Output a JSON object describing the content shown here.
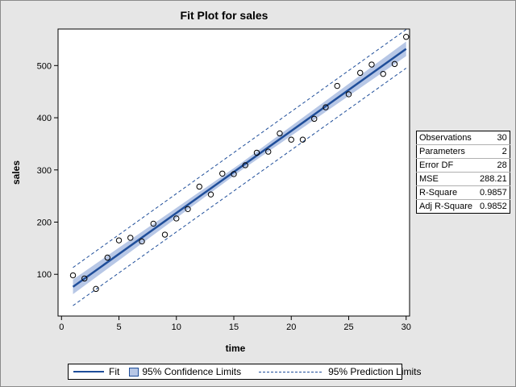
{
  "chart_data": {
    "type": "scatter",
    "title": "Fit Plot for sales",
    "xlabel": "time",
    "ylabel": "sales",
    "xlim": [
      -0.3,
      30.3
    ],
    "ylim": [
      20,
      570
    ],
    "x_ticks": [
      0,
      5,
      10,
      15,
      20,
      25,
      30
    ],
    "y_ticks": [
      100,
      200,
      300,
      400,
      500
    ],
    "grid": false,
    "series": [
      {
        "name": "Observations",
        "kind": "scatter",
        "x": [
          1,
          2,
          3,
          4,
          5,
          6,
          7,
          8,
          9,
          10,
          11,
          12,
          13,
          14,
          15,
          16,
          17,
          18,
          19,
          20,
          21,
          22,
          23,
          24,
          25,
          26,
          27,
          28,
          29,
          30
        ],
        "y": [
          98,
          92,
          72,
          132,
          165,
          170,
          163,
          197,
          176,
          207,
          225,
          268,
          253,
          293,
          292,
          309,
          333,
          335,
          370,
          358,
          358,
          398,
          420,
          461,
          445,
          486,
          502,
          484,
          503,
          555
        ]
      },
      {
        "name": "Fit",
        "kind": "line",
        "x": [
          1,
          30
        ],
        "y": [
          76,
          532
        ]
      },
      {
        "name": "95% Confidence Limits",
        "kind": "band",
        "x": [
          1,
          15.5,
          30
        ],
        "lower": [
          62,
          297,
          518
        ],
        "upper": [
          90,
          311,
          546
        ]
      },
      {
        "name": "95% Prediction Limits",
        "kind": "dashed-bounds",
        "x": [
          1,
          30
        ],
        "lower": [
          40,
          495
        ],
        "upper": [
          113,
          569
        ]
      }
    ]
  },
  "stats": [
    {
      "label": "Observations",
      "value": "30"
    },
    {
      "label": "Parameters",
      "value": "2"
    },
    {
      "label": "Error DF",
      "value": "28"
    },
    {
      "label": "MSE",
      "value": "288.21"
    },
    {
      "label": "R-Square",
      "value": "0.9857"
    },
    {
      "label": "Adj R-Square",
      "value": "0.9852"
    }
  ],
  "legend": {
    "fit": "Fit",
    "confidence": "95% Confidence Limits",
    "prediction": "95% Prediction Limits"
  },
  "colors": {
    "line": "#1f4e9a",
    "band": "#b7c7e6",
    "marker": "#000000"
  }
}
